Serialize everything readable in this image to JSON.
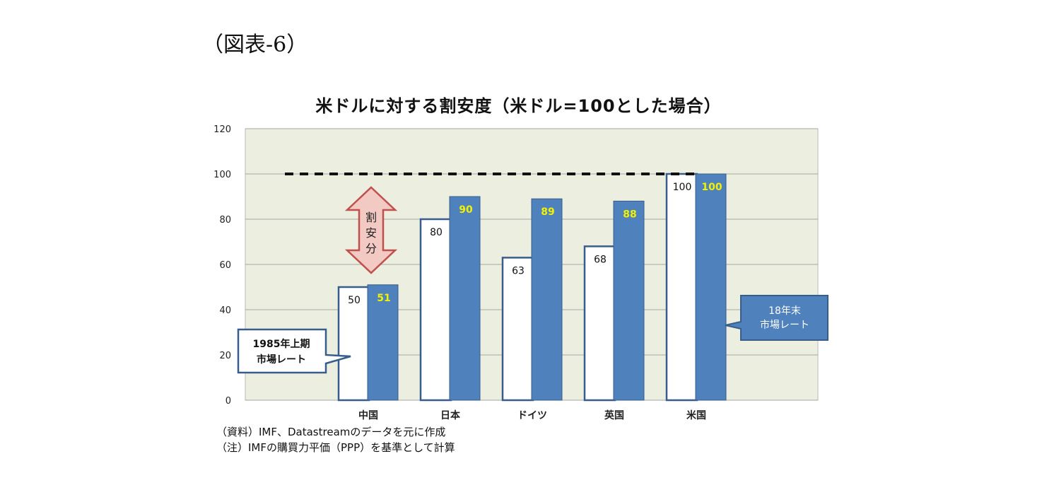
{
  "figure_label": "（図表-6）",
  "chart_data": {
    "type": "bar",
    "title": "米ドルに対する割安度（米ドル=100とした場合）",
    "xlabel": "",
    "ylabel": "",
    "ylim": [
      0,
      120
    ],
    "yticks": [
      0,
      20,
      40,
      60,
      80,
      100,
      120
    ],
    "grid": true,
    "categories": [
      "中国",
      "日本",
      "ドイツ",
      "英国",
      "米国"
    ],
    "series": [
      {
        "name": "1985年上期\n市場レート",
        "values": [
          50,
          80,
          63,
          68,
          100
        ],
        "color": "#ffffff",
        "label_color": "#111111"
      },
      {
        "name": "18年末\n市場レート",
        "values": [
          51,
          90,
          89,
          88,
          100
        ],
        "color": "#4f81bd",
        "label_color": "#f2f200"
      }
    ],
    "reference_line": {
      "value": 100,
      "style": "dashed"
    },
    "annotations": [
      {
        "text_lines": [
          "割",
          "安",
          "分"
        ],
        "type": "double-arrow"
      }
    ],
    "callouts": [
      {
        "lines": [
          "1985年上期",
          "市場レート"
        ],
        "series": 0
      },
      {
        "lines": [
          "18年末",
          "市場レート"
        ],
        "series": 1
      }
    ]
  },
  "notes": [
    "（資料）IMF、Datastreamのデータを元に作成",
    "（注）IMFの購買力平価（PPP）を基準として計算"
  ],
  "colors": {
    "plot_background": "#ecefdf",
    "bar_outline": "#385d8a",
    "blue_bar": "#4f81bd",
    "arrow_fill": "#f2c9c3",
    "arrow_stroke": "#c0504d"
  }
}
